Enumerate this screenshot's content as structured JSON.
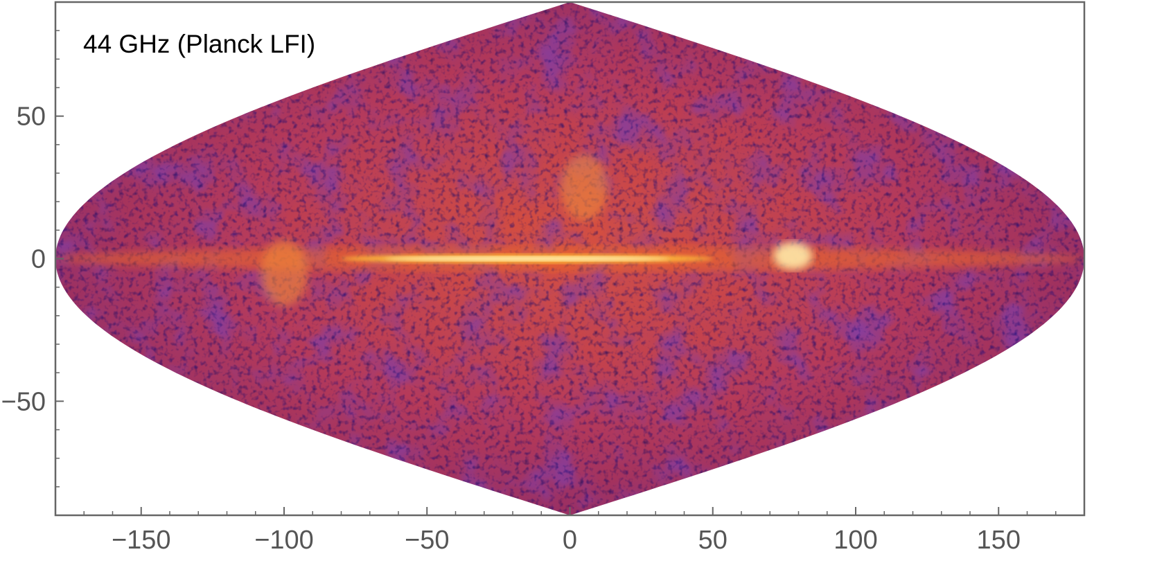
{
  "chart_data": {
    "type": "heatmap",
    "title": "",
    "annotation": "44 GHz (Planck LFI)",
    "xlabel": "",
    "ylabel": "",
    "xlim": [
      -180,
      180
    ],
    "ylim": [
      -90,
      90
    ],
    "x_ticks": [
      -150,
      -100,
      -50,
      0,
      50,
      100,
      150
    ],
    "y_ticks": [
      -50,
      0,
      50
    ],
    "x_tick_labels": [
      "−150",
      "−100",
      "−50",
      "0",
      "50",
      "100",
      "150"
    ],
    "y_tick_labels": [
      "−50",
      "0",
      "50"
    ],
    "projection": "sinusoidal",
    "grid": false,
    "colormap": [
      "#000004",
      "#1b0c41",
      "#4a0c6b",
      "#781c6d",
      "#a52c60",
      "#cf4446",
      "#ed6925",
      "#fb9b06",
      "#f7d13d",
      "#fcffa4"
    ],
    "colors": {
      "frame": "#666666",
      "tick_label": "#555555",
      "background": "#ffffff"
    },
    "features": [
      {
        "name": "Galactic plane",
        "lon_range": [
          -180,
          180
        ],
        "lat": 0,
        "intensity": "high"
      },
      {
        "name": "Bright region",
        "lon": 78,
        "lat": 1,
        "intensity": "high"
      },
      {
        "name": "Bright region",
        "lon": -100,
        "lat": -5,
        "intensity": "medium"
      },
      {
        "name": "Bright region",
        "lon": 5,
        "lat": 25,
        "intensity": "medium"
      }
    ]
  }
}
